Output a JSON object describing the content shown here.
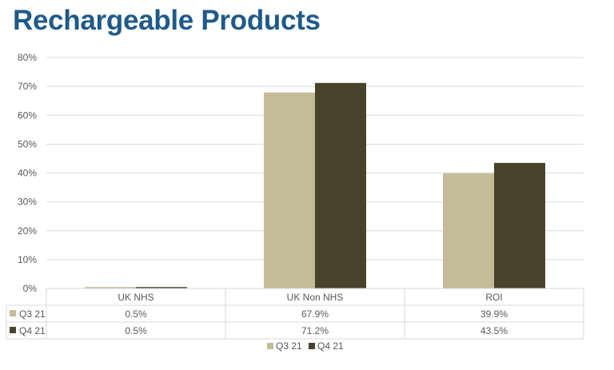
{
  "slide": {
    "title": "Rechargeable Products"
  },
  "chart_data": {
    "type": "bar",
    "categories": [
      "UK NHS",
      "UK Non NHS",
      "ROI"
    ],
    "series": [
      {
        "name": "Q3 21",
        "color": "#c4bc97",
        "values": [
          0.5,
          67.9,
          39.9
        ],
        "labels": [
          "0.5%",
          "67.9%",
          "39.9%"
        ]
      },
      {
        "name": "Q4 21",
        "color": "#4a432b",
        "values": [
          0.5,
          71.2,
          43.5
        ],
        "labels": [
          "0.5%",
          "71.2%",
          "43.5%"
        ]
      }
    ],
    "yticks": [
      "0%",
      "10%",
      "20%",
      "30%",
      "40%",
      "50%",
      "60%",
      "70%",
      "80%"
    ],
    "ylim": [
      0,
      80
    ],
    "grid": true,
    "legend": "bottom",
    "data_table": true
  }
}
